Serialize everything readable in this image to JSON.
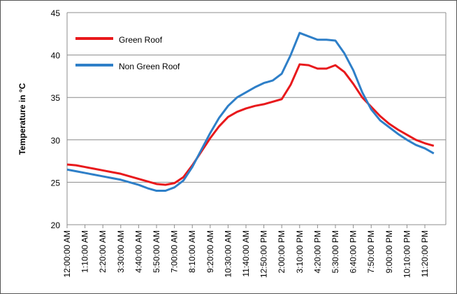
{
  "chart_data": {
    "type": "line",
    "ylabel": "Temperature in °C",
    "categories": [
      "12:00:00 AM",
      null,
      "1:10:00 AM",
      null,
      "2:20:00 AM",
      null,
      "3:30:00 AM",
      null,
      "4:40:00 AM",
      null,
      "5:50:00 AM",
      null,
      "7:00:00 AM",
      null,
      "8:10:00 AM",
      null,
      "9:20:00 AM",
      null,
      "10:30:00 AM",
      null,
      "11:40:00 AM",
      null,
      "12:50:00 PM",
      null,
      "2:00:00 PM",
      null,
      "3:10:00 PM",
      null,
      "4:20:00 PM",
      null,
      "5:30:00 PM",
      null,
      "6:40:00 PM",
      null,
      "7:50:00 PM",
      null,
      "9:00:00 PM",
      null,
      "10:10:00 PM",
      null,
      "11:20:00 PM",
      null
    ],
    "series": [
      {
        "name": "Green Roof",
        "color": "#e8191c",
        "values": [
          27.1,
          27.0,
          26.8,
          26.6,
          26.4,
          26.2,
          26.0,
          25.7,
          25.4,
          25.1,
          24.8,
          24.7,
          24.9,
          25.6,
          27.0,
          28.6,
          30.2,
          31.6,
          32.7,
          33.3,
          33.7,
          34.0,
          34.2,
          34.5,
          34.8,
          36.5,
          38.9,
          38.8,
          38.4,
          38.4,
          38.8,
          38.0,
          36.6,
          35.0,
          33.9,
          32.8,
          31.9,
          31.2,
          30.6,
          30.0,
          29.6,
          29.3
        ]
      },
      {
        "name": "Non Green Roof",
        "color": "#2e7fc8",
        "values": [
          26.5,
          26.3,
          26.1,
          25.9,
          25.7,
          25.5,
          25.3,
          25.0,
          24.7,
          24.3,
          24.0,
          24.0,
          24.4,
          25.2,
          26.8,
          28.8,
          30.8,
          32.6,
          34.0,
          35.0,
          35.6,
          36.2,
          36.7,
          37.0,
          37.8,
          40.0,
          42.6,
          42.2,
          41.8,
          41.8,
          41.7,
          40.2,
          38.2,
          35.6,
          33.6,
          32.3,
          31.5,
          30.7,
          30.0,
          29.4,
          29.0,
          28.4
        ]
      }
    ],
    "ylim": [
      20,
      45
    ],
    "yticks": [
      20,
      25,
      30,
      35,
      40,
      45
    ],
    "grid": true,
    "legend": "upper-left"
  }
}
